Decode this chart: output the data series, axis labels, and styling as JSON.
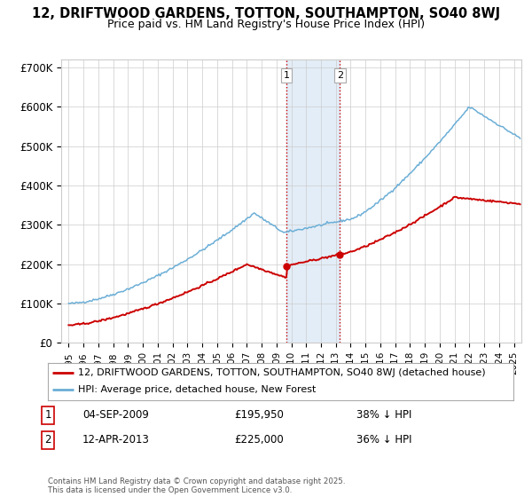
{
  "title": "12, DRIFTWOOD GARDENS, TOTTON, SOUTHAMPTON, SO40 8WJ",
  "subtitle": "Price paid vs. HM Land Registry's House Price Index (HPI)",
  "footer": "Contains HM Land Registry data © Crown copyright and database right 2025.\nThis data is licensed under the Open Government Licence v3.0.",
  "legend_line1": "12, DRIFTWOOD GARDENS, TOTTON, SOUTHAMPTON, SO40 8WJ (detached house)",
  "legend_line2": "HPI: Average price, detached house, New Forest",
  "sale1_label": "1",
  "sale1_date": "04-SEP-2009",
  "sale1_price": "£195,950",
  "sale1_hpi": "38% ↓ HPI",
  "sale1_year": 2009.67,
  "sale1_value": 195950,
  "sale2_label": "2",
  "sale2_date": "12-APR-2013",
  "sale2_price": "£225,000",
  "sale2_hpi": "36% ↓ HPI",
  "sale2_year": 2013.28,
  "sale2_value": 225000,
  "hpi_color": "#6baed6",
  "price_color": "#cc0000",
  "highlight_color": "#dce9f5",
  "ylim": [
    0,
    720000
  ],
  "yticks": [
    0,
    100000,
    200000,
    300000,
    400000,
    500000,
    600000,
    700000
  ],
  "ytick_labels": [
    "£0",
    "£100K",
    "£200K",
    "£300K",
    "£400K",
    "£500K",
    "£600K",
    "£700K"
  ],
  "xlim_start": 1994.5,
  "xlim_end": 2025.5
}
